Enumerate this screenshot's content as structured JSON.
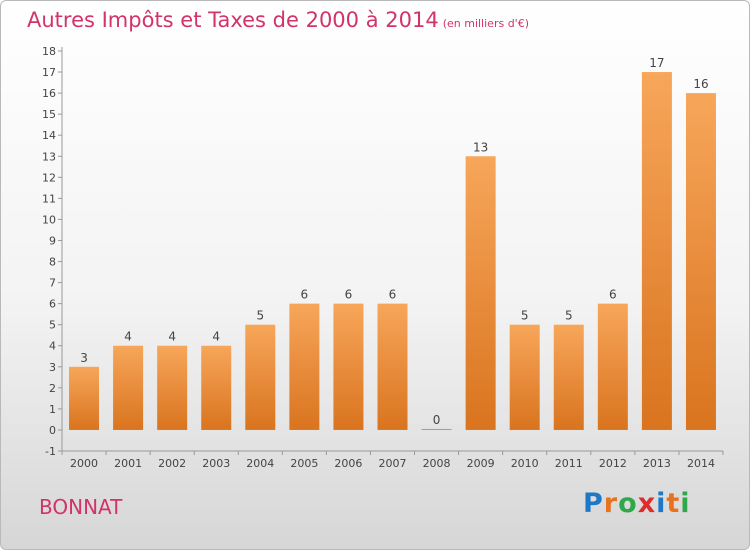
{
  "header": {
    "title": "Autres Impôts et Taxes de 2000 à 2014",
    "unit": "(en milliers d'€)"
  },
  "commune": "BONNAT",
  "logo": {
    "letters": [
      "P",
      "r",
      "o",
      "x",
      "i",
      "t",
      "i"
    ],
    "colors": [
      "#1e78c8",
      "#e8731e",
      "#2ea84a",
      "#e02b2b",
      "#1e78c8",
      "#e8731e",
      "#2ea84a"
    ]
  },
  "chart_data": {
    "type": "bar",
    "categories": [
      "2000",
      "2001",
      "2002",
      "2003",
      "2004",
      "2005",
      "2006",
      "2007",
      "2008",
      "2009",
      "2010",
      "2011",
      "2012",
      "2013",
      "2014"
    ],
    "values": [
      3,
      4,
      4,
      4,
      5,
      6,
      6,
      6,
      0,
      13,
      5,
      5,
      6,
      17,
      16
    ],
    "ylim": [
      -1,
      18
    ],
    "yticks": [
      -1,
      0,
      1,
      2,
      3,
      4,
      5,
      6,
      7,
      8,
      9,
      10,
      11,
      12,
      13,
      14,
      15,
      16,
      17,
      18
    ],
    "grid": false,
    "bar_color_top": "#f7a65a",
    "bar_color_bottom": "#d9741f"
  }
}
